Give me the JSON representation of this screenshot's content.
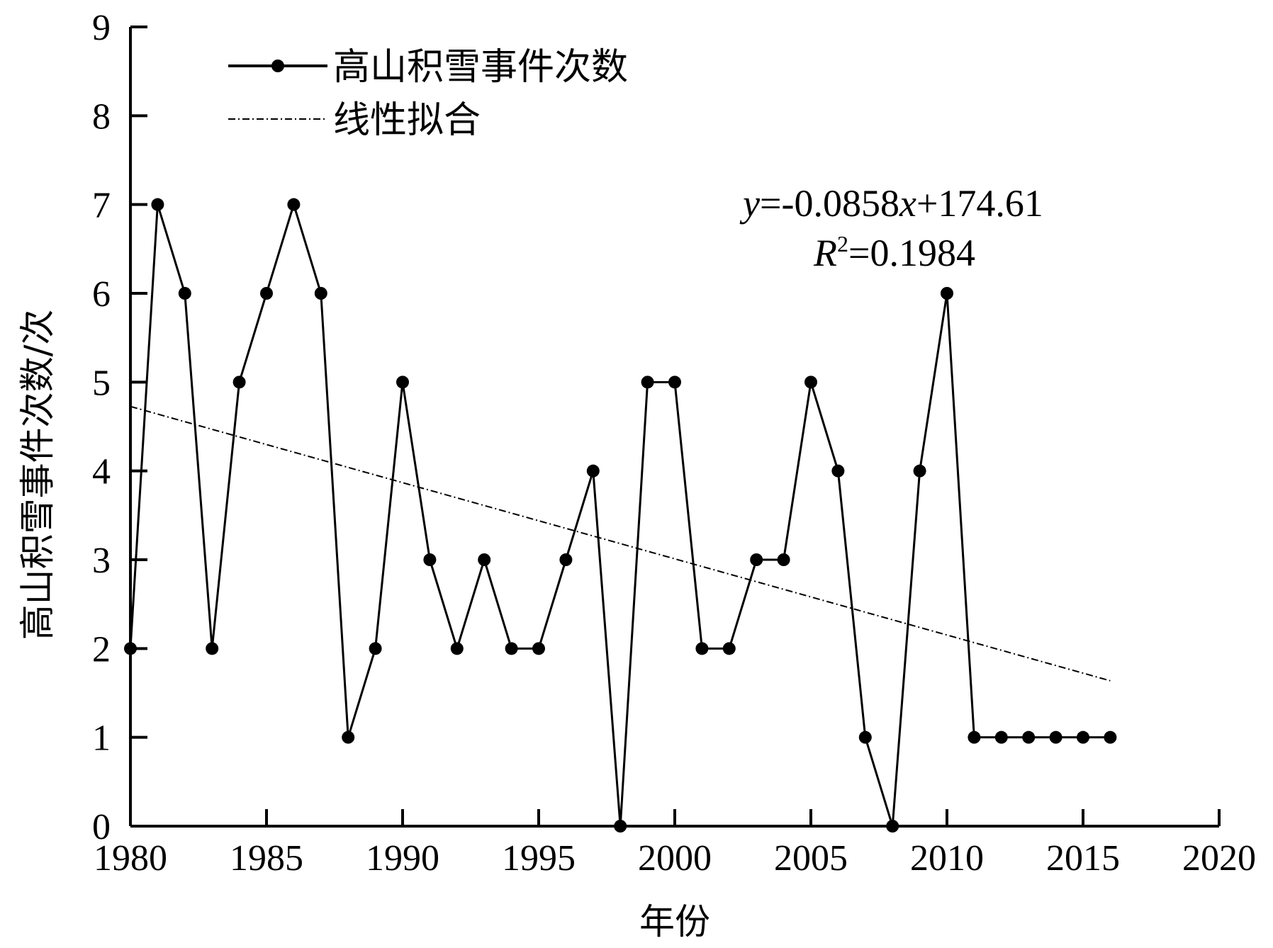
{
  "chart_data": {
    "type": "line",
    "x": [
      1980,
      1981,
      1982,
      1983,
      1984,
      1985,
      1986,
      1987,
      1988,
      1989,
      1990,
      1991,
      1992,
      1993,
      1994,
      1995,
      1996,
      1997,
      1998,
      1999,
      2000,
      2001,
      2002,
      2003,
      2004,
      2005,
      2006,
      2007,
      2008,
      2009,
      2010,
      2011,
      2012,
      2013,
      2014,
      2015,
      2016
    ],
    "series": [
      {
        "name": "高山积雪事件次数",
        "values": [
          2,
          7,
          6,
          2,
          5,
          6,
          7,
          6,
          1,
          2,
          5,
          3,
          2,
          3,
          2,
          2,
          3,
          4,
          0,
          5,
          5,
          2,
          2,
          3,
          3,
          5,
          4,
          1,
          0,
          4,
          6,
          1,
          1,
          1,
          1,
          1,
          1
        ],
        "color": "#000000",
        "marker": "circle"
      }
    ],
    "trend": {
      "name": "线性拟合",
      "slope": -0.0858,
      "intercept": 174.61,
      "x_start": 1980,
      "x_end": 2016,
      "style": "dash-dot"
    },
    "annotation": {
      "equation_y": "y",
      "equation_rest": "=-0.0858",
      "equation_x": "x",
      "equation_tail": "+174.61",
      "r2_R": "R",
      "r2_sup": "2",
      "r2_value": "=0.1984"
    },
    "xlabel": "年份",
    "ylabel": "高山积雪事件次数/次",
    "xlim": [
      1980,
      2020
    ],
    "ylim": [
      0,
      9
    ],
    "xticks": [
      1980,
      1985,
      1990,
      1995,
      2000,
      2005,
      2010,
      2015,
      2020
    ],
    "yticks": [
      0,
      1,
      2,
      3,
      4,
      5,
      6,
      7,
      8,
      9
    ],
    "grid": false,
    "legend_position": "top-left"
  }
}
